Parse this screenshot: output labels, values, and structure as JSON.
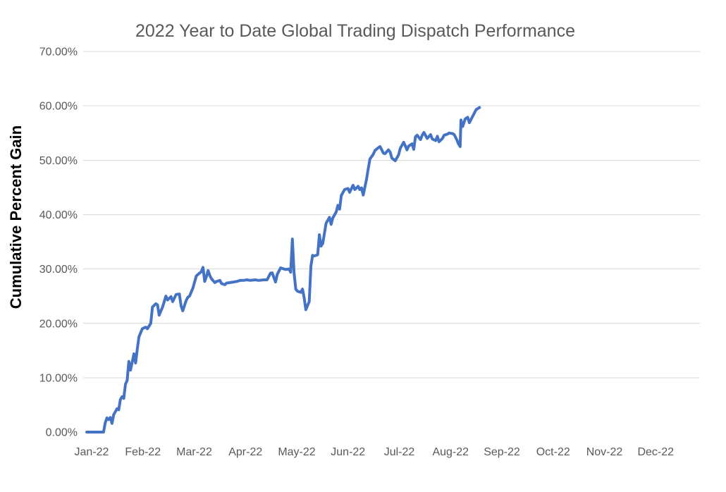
{
  "chart_data": {
    "type": "line",
    "title": "2022 Year to Date Global Trading Dispatch Performance",
    "xlabel": "",
    "ylabel": "Cumulative Percent Gain",
    "x_tick_labels": [
      "Jan-22",
      "Feb-22",
      "Mar-22",
      "Apr-22",
      "May-22",
      "Jun-22",
      "Jul-22",
      "Aug-22",
      "Sep-22",
      "Oct-22",
      "Nov-22",
      "Dec-22"
    ],
    "y_tick_labels": [
      "0.00%",
      "10.00%",
      "20.00%",
      "30.00%",
      "40.00%",
      "50.00%",
      "60.00%",
      "70.00%"
    ],
    "ylim": [
      0,
      70
    ],
    "xlim_days": [
      0,
      365
    ],
    "grid": "horizontal-only-10-to-70",
    "legend": "none",
    "series": [
      {
        "color": "#4472C4",
        "x_unit": "day-of-year-2022",
        "y_unit": "cumulative-percent-gain",
        "points": [
          [
            0,
            0
          ],
          [
            10,
            0
          ],
          [
            11,
            1.7
          ],
          [
            12,
            2.6
          ],
          [
            13,
            2.3
          ],
          [
            14,
            2.7
          ],
          [
            15,
            1.6
          ],
          [
            16,
            3.2
          ],
          [
            18,
            4.3
          ],
          [
            19,
            4.1
          ],
          [
            20,
            6.0
          ],
          [
            21,
            6.5
          ],
          [
            22,
            6.2
          ],
          [
            23,
            8.8
          ],
          [
            24,
            9.5
          ],
          [
            25,
            13.0
          ],
          [
            26,
            11.4
          ],
          [
            28,
            14.4
          ],
          [
            29,
            12.7
          ],
          [
            30,
            15.3
          ],
          [
            31,
            17.5
          ],
          [
            33,
            19.0
          ],
          [
            35,
            19.3
          ],
          [
            36,
            19.0
          ],
          [
            38,
            20.0
          ],
          [
            39,
            23.0
          ],
          [
            41,
            23.6
          ],
          [
            42,
            23.4
          ],
          [
            43,
            21.5
          ],
          [
            45,
            23.0
          ],
          [
            47,
            25.0
          ],
          [
            48,
            24.3
          ],
          [
            50,
            24.9
          ],
          [
            51,
            24.0
          ],
          [
            53,
            25.3
          ],
          [
            55,
            25.4
          ],
          [
            56,
            23.2
          ],
          [
            57,
            22.3
          ],
          [
            59,
            24.2
          ],
          [
            60,
            24.8
          ],
          [
            61,
            25.0
          ],
          [
            63,
            26.5
          ],
          [
            65,
            28.7
          ],
          [
            66,
            29.0
          ],
          [
            68,
            29.5
          ],
          [
            69,
            30.3
          ],
          [
            70,
            27.7
          ],
          [
            71,
            28.6
          ],
          [
            72,
            29.7
          ],
          [
            73,
            28.8
          ],
          [
            74,
            28.2
          ],
          [
            76,
            27.5
          ],
          [
            77,
            27.7
          ],
          [
            79,
            27.9
          ],
          [
            80,
            27.3
          ],
          [
            82,
            27.1
          ],
          [
            83,
            27.4
          ],
          [
            85,
            27.5
          ],
          [
            87,
            27.6
          ],
          [
            89,
            27.7
          ],
          [
            91,
            27.9
          ],
          [
            93,
            27.9
          ],
          [
            95,
            28.0
          ],
          [
            97,
            27.9
          ],
          [
            100,
            28.0
          ],
          [
            102,
            27.9
          ],
          [
            105,
            28.0
          ],
          [
            107,
            28.0
          ],
          [
            109,
            29.2
          ],
          [
            110,
            29.3
          ],
          [
            112,
            27.6
          ],
          [
            113,
            29.0
          ],
          [
            115,
            30.2
          ],
          [
            116,
            30.1
          ],
          [
            118,
            29.9
          ],
          [
            120,
            30.0
          ],
          [
            121,
            29.4
          ],
          [
            122,
            35.5
          ],
          [
            123,
            29.3
          ],
          [
            124,
            26.3
          ],
          [
            125,
            25.9
          ],
          [
            127,
            25.7
          ],
          [
            128,
            26.3
          ],
          [
            129,
            24.7
          ],
          [
            130,
            22.5
          ],
          [
            132,
            24.0
          ],
          [
            133,
            30.5
          ],
          [
            134,
            32.5
          ],
          [
            135,
            32.4
          ],
          [
            137,
            32.6
          ],
          [
            138,
            36.3
          ],
          [
            139,
            34.2
          ],
          [
            140,
            34.7
          ],
          [
            141,
            36.5
          ],
          [
            142,
            38.4
          ],
          [
            144,
            39.5
          ],
          [
            145,
            38.2
          ],
          [
            146,
            39.4
          ],
          [
            148,
            40.5
          ],
          [
            149,
            41.7
          ],
          [
            150,
            41.0
          ],
          [
            151,
            43.5
          ],
          [
            153,
            44.6
          ],
          [
            155,
            44.8
          ],
          [
            156,
            44.1
          ],
          [
            158,
            45.4
          ],
          [
            159,
            44.6
          ],
          [
            161,
            45.2
          ],
          [
            162,
            44.6
          ],
          [
            163,
            44.9
          ],
          [
            164,
            43.6
          ],
          [
            166,
            46.5
          ],
          [
            167,
            48.4
          ],
          [
            168,
            50.2
          ],
          [
            170,
            51.1
          ],
          [
            171,
            51.8
          ],
          [
            173,
            52.3
          ],
          [
            174,
            52.5
          ],
          [
            176,
            51.3
          ],
          [
            177,
            51.2
          ],
          [
            179,
            51.9
          ],
          [
            180,
            51.5
          ],
          [
            181,
            50.4
          ],
          [
            183,
            49.9
          ],
          [
            185,
            51.0
          ],
          [
            186,
            52.2
          ],
          [
            188,
            53.3
          ],
          [
            189,
            52.6
          ],
          [
            190,
            51.9
          ],
          [
            191,
            52.6
          ],
          [
            193,
            53.0
          ],
          [
            194,
            52.0
          ],
          [
            195,
            54.3
          ],
          [
            196,
            54.6
          ],
          [
            198,
            53.8
          ],
          [
            199,
            54.6
          ],
          [
            200,
            55.1
          ],
          [
            202,
            54.0
          ],
          [
            204,
            54.7
          ],
          [
            205,
            53.9
          ],
          [
            207,
            53.6
          ],
          [
            208,
            54.4
          ],
          [
            209,
            53.4
          ],
          [
            211,
            54.0
          ],
          [
            212,
            54.6
          ],
          [
            214,
            54.8
          ],
          [
            215,
            55.0
          ],
          [
            217,
            54.9
          ],
          [
            218,
            54.7
          ],
          [
            219.5,
            53.8
          ],
          [
            220.5,
            53.0
          ],
          [
            221.5,
            52.5
          ],
          [
            222,
            57.4
          ],
          [
            223,
            56.2
          ],
          [
            224.5,
            57.6
          ],
          [
            226,
            57.9
          ],
          [
            227,
            56.9
          ],
          [
            228,
            57.5
          ],
          [
            230,
            58.7
          ],
          [
            231,
            59.3
          ],
          [
            232,
            59.5
          ],
          [
            233,
            59.7
          ]
        ]
      }
    ]
  },
  "colors": {
    "line": "#4472C4",
    "grid": "#D9D9D9",
    "title_text": "#595959",
    "tick_text": "#595959",
    "axis_title_text": "#000000",
    "bg": "#FFFFFF"
  }
}
